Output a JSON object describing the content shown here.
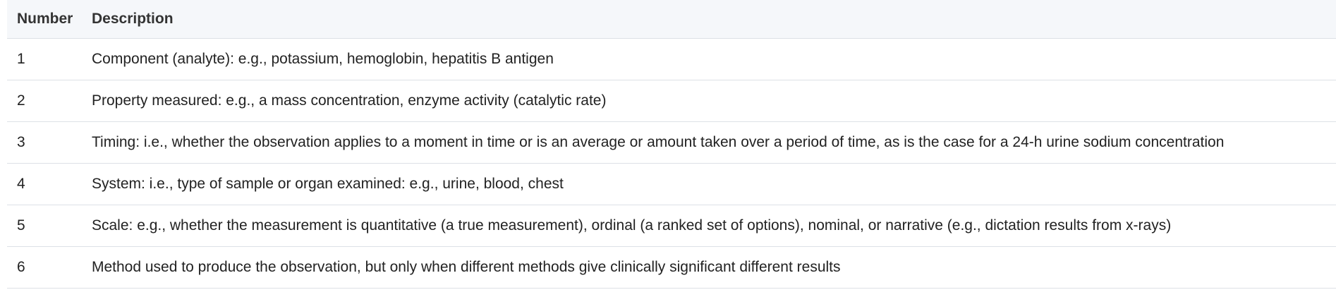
{
  "table": {
    "headers": {
      "number": "Number",
      "description": "Description"
    },
    "rows": [
      {
        "number": "1",
        "description": "Component (analyte): e.g., potassium, hemoglobin, hepatitis B antigen"
      },
      {
        "number": "2",
        "description": "Property measured: e.g., a mass concentration, enzyme activity (catalytic rate)"
      },
      {
        "number": "3",
        "description": "Timing: i.e., whether the observation applies to a moment in time or is an average or amount taken over a period of time, as is the case for a 24-h urine sodium concentration"
      },
      {
        "number": "4",
        "description": "System: i.e., type of sample or organ examined: e.g., urine, blood, chest"
      },
      {
        "number": "5",
        "description": "Scale: e.g., whether the measurement is quantitative (a true measurement), ordinal (a ranked set of options), nominal, or narrative (e.g., dictation results from x-rays)"
      },
      {
        "number": "6",
        "description": "Method used to produce the observation, but only when different methods give clinically significant different results"
      }
    ]
  }
}
